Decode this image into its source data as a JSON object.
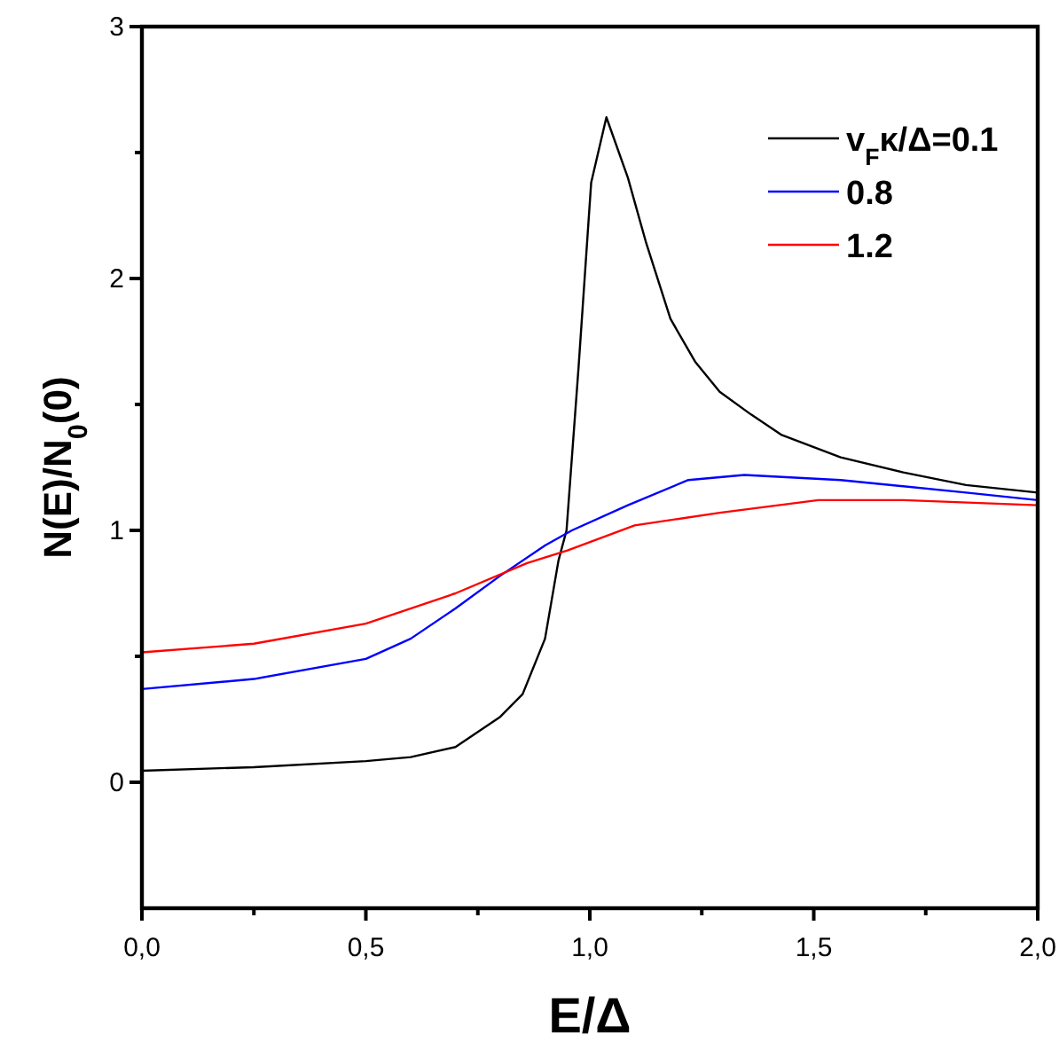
{
  "chart_data": {
    "type": "line",
    "xlabel": "E/Δ",
    "ylabel": "N(E)/N$_{0}$(0)",
    "xlim": [
      0,
      2
    ],
    "ylim": [
      -0.5,
      3
    ],
    "xticks": [
      {
        "value": 0,
        "label": "0,0"
      },
      {
        "value": 0.25,
        "label": null
      },
      {
        "value": 0.5,
        "label": "0,5"
      },
      {
        "value": 0.75,
        "label": null
      },
      {
        "value": 1,
        "label": "1,0"
      },
      {
        "value": 1.25,
        "label": null
      },
      {
        "value": 1.5,
        "label": "1,5"
      },
      {
        "value": 1.75,
        "label": null
      },
      {
        "value": 2,
        "label": "2,0"
      }
    ],
    "yticks": [
      0,
      {
        "value": 0.5,
        "label": null
      },
      1,
      {
        "value": 1.5,
        "label": null
      },
      2,
      {
        "value": 2.5,
        "label": null
      },
      3
    ],
    "grid": false,
    "legend": "top right",
    "marker": "none",
    "line_style": "solid",
    "series": [
      {
        "name": "v$_{F}$κ/Δ=0.1",
        "color": "#000000",
        "x": [
          0,
          0.25,
          0.5,
          0.6,
          0.7,
          0.8,
          0.85,
          0.9,
          0.93,
          0.948,
          0.975,
          1.003,
          1.037,
          1.085,
          1.126,
          1.18,
          1.235,
          1.29,
          1.36,
          1.427,
          1.56,
          1.7,
          1.84,
          2
        ],
        "values": [
          0.046,
          0.06,
          0.084,
          0.1,
          0.14,
          0.26,
          0.35,
          0.57,
          0.88,
          1.0,
          1.65,
          2.38,
          2.64,
          2.4,
          2.14,
          1.84,
          1.67,
          1.55,
          1.46,
          1.38,
          1.29,
          1.23,
          1.18,
          1.15
        ]
      },
      {
        "name": "0.8",
        "color": "#0000ff",
        "x": [
          0,
          0.25,
          0.5,
          0.6,
          0.7,
          0.8,
          0.9,
          0.96,
          1.085,
          1.22,
          1.345,
          1.56,
          1.84,
          2
        ],
        "values": [
          0.37,
          0.41,
          0.49,
          0.57,
          0.69,
          0.82,
          0.94,
          1.0,
          1.1,
          1.2,
          1.22,
          1.2,
          1.15,
          1.12
        ]
      },
      {
        "name": "1.2",
        "color": "#ff0000",
        "x": [
          0,
          0.25,
          0.5,
          0.7,
          0.86,
          0.95,
          1.1,
          1.29,
          1.51,
          1.7,
          2
        ],
        "values": [
          0.516,
          0.55,
          0.63,
          0.75,
          0.87,
          0.92,
          1.02,
          1.07,
          1.12,
          1.12,
          1.1
        ]
      }
    ]
  }
}
